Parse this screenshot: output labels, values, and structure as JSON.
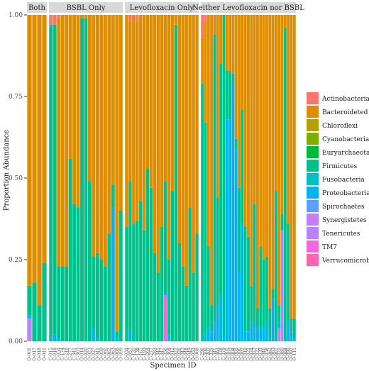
{
  "chart_data": {
    "type": "stacked-bar",
    "xlabel": "Specimen ID",
    "ylabel": "Proportion Abundance",
    "ylim": [
      0,
      1
    ],
    "yticks": [
      "0.00",
      "0.25",
      "0.50",
      "0.75",
      "1.00"
    ],
    "grid": false,
    "legend_position": "right",
    "stack_order": [
      "Verrucomicrobia",
      "TM7",
      "Tenericutes",
      "Synergistetes",
      "Spirochaetes",
      "Proteobacteria",
      "Fusobacteria",
      "Firmicutes",
      "Euryarchaeota",
      "Cyanobacteria",
      "Chloroflexi",
      "Bacteroideted",
      "Actinobacteria"
    ],
    "taxa": [
      {
        "name": "Actinobacteria",
        "color": "#F8766D"
      },
      {
        "name": "Bacteroideted",
        "color": "#DE8C00"
      },
      {
        "name": "Chloroflexi",
        "color": "#B79F00"
      },
      {
        "name": "Cyanobacteria",
        "color": "#7CAE00"
      },
      {
        "name": "Euryarchaeota",
        "color": "#00BA38"
      },
      {
        "name": "Firmicutes",
        "color": "#00C08B"
      },
      {
        "name": "Fusobacteria",
        "color": "#00BFC4"
      },
      {
        "name": "Proteobacteria",
        "color": "#00B4F0"
      },
      {
        "name": "Spirochaetes",
        "color": "#619CFF"
      },
      {
        "name": "Synergistetes",
        "color": "#C77CFF"
      },
      {
        "name": "Tenericutes",
        "color": "#B983FF"
      },
      {
        "name": "TM7",
        "color": "#F564E3"
      },
      {
        "name": "Verrucomicrobia",
        "color": "#FF64B0"
      }
    ],
    "panels": [
      {
        "label": "Both",
        "samples": [
          {
            "id": "O-001",
            "Firmicutes": 0.09,
            "Proteobacteria": 0.01,
            "Tenericutes": 0.07,
            "Bacteroideted": 0.83
          },
          {
            "id": "O-017",
            "Firmicutes": 0.18,
            "Bacteroideted": 0.82
          },
          {
            "id": "O-018",
            "Firmicutes": 0.11,
            "Bacteroideted": 0.89
          },
          {
            "id": "O-041",
            "Firmicutes": 0.24,
            "Bacteroideted": 0.76
          }
        ]
      },
      {
        "label": "BSBL Only",
        "samples": [
          {
            "id": "C-015",
            "Firmicutes": 0.96,
            "Proteobacteria": 0.01,
            "Actinobacteria": 0.03
          },
          {
            "id": "C-018",
            "Firmicutes": 0.95,
            "Proteobacteria": 0.02,
            "Actinobacteria": 0.03
          },
          {
            "id": "C-054",
            "Firmicutes": 0.22,
            "Proteobacteria": 0.01,
            "Bacteroideted": 0.76,
            "Actinobacteria": 0.01
          },
          {
            "id": "C-174",
            "Firmicutes": 0.23,
            "Bacteroideted": 0.77
          },
          {
            "id": "C-218",
            "Firmicutes": 0.23,
            "Bacteroideted": 0.77
          },
          {
            "id": "C-277",
            "Firmicutes": 0.56,
            "Bacteroideted": 0.44
          },
          {
            "id": "C-341",
            "Firmicutes": 0.42,
            "Bacteroideted": 0.58
          },
          {
            "id": "C-363",
            "Firmicutes": 0.41,
            "Bacteroideted": 0.59
          },
          {
            "id": "O-014",
            "Firmicutes": 0.99,
            "Bacteroideted": 0.01
          },
          {
            "id": "O-020",
            "Firmicutes": 0.99,
            "Bacteroideted": 0.01
          },
          {
            "id": "O-023",
            "Firmicutes": 0.49,
            "Bacteroideted": 0.51
          },
          {
            "id": "O-027",
            "Firmicutes": 0.22,
            "Proteobacteria": 0.04,
            "Bacteroideted": 0.74
          },
          {
            "id": "O-041",
            "Firmicutes": 0.26,
            "Proteobacteria": 0.01,
            "Bacteroideted": 0.73
          },
          {
            "id": "O-059",
            "Firmicutes": 0.25,
            "Bacteroideted": 0.75
          },
          {
            "id": "O-060",
            "Firmicutes": 0.23,
            "Bacteroideted": 0.77
          },
          {
            "id": "O-062",
            "Firmicutes": 0.33,
            "Bacteroideted": 0.67
          },
          {
            "id": "O-063",
            "Firmicutes": 0.07,
            "Proteobacteria": 0.41,
            "Bacteroideted": 0.52
          },
          {
            "id": "O-068",
            "Firmicutes": 0.02,
            "Proteobacteria": 0.01,
            "Bacteroideted": 0.97
          },
          {
            "id": "O-099",
            "Firmicutes": 0.4,
            "Bacteroideted": 0.6
          }
        ]
      },
      {
        "label": "Levofloxacin Only",
        "samples": [
          {
            "id": "C-034",
            "Firmicutes": 0.35,
            "Bacteroideted": 0.65
          },
          {
            "id": "C-057",
            "Firmicutes": 0.45,
            "Proteobacteria": 0.04,
            "Bacteroideted": 0.49,
            "Actinobacteria": 0.02
          },
          {
            "id": "C-120",
            "Firmicutes": 0.36,
            "Bacteroideted": 0.64
          },
          {
            "id": "C-138",
            "Firmicutes": 0.37,
            "Bacteroideted": 0.61,
            "Actinobacteria": 0.02
          },
          {
            "id": "C-167",
            "Firmicutes": 0.43,
            "Bacteroideted": 0.57
          },
          {
            "id": "C-193",
            "Firmicutes": 0.34,
            "Bacteroideted": 0.66
          },
          {
            "id": "C-264",
            "Firmicutes": 0.53,
            "Bacteroideted": 0.47
          },
          {
            "id": "C-277",
            "Firmicutes": 0.47,
            "Bacteroideted": 0.53
          },
          {
            "id": "C-283",
            "Firmicutes": 0.27,
            "Bacteroideted": 0.73
          },
          {
            "id": "C-345",
            "Firmicutes": 0.21,
            "Bacteroideted": 0.79
          },
          {
            "id": "C-347",
            "Firmicutes": 0.35,
            "Bacteroideted": 0.65
          },
          {
            "id": "C-356",
            "Firmicutes": 0.34,
            "Proteobacteria": 0.01,
            "Bacteroideted": 0.51,
            "TM7": 0.14
          },
          {
            "id": "C-368",
            "Firmicutes": 0.23,
            "Proteobacteria": 0.02,
            "Bacteroideted": 0.75
          },
          {
            "id": "O-012",
            "Firmicutes": 0.46,
            "Bacteroideted": 0.54
          },
          {
            "id": "O-022",
            "Firmicutes": 0.97,
            "Bacteroideted": 0.03
          },
          {
            "id": "O-026",
            "Firmicutes": 0.3,
            "Bacteroideted": 0.7
          },
          {
            "id": "O-043",
            "Firmicutes": 0.23,
            "Bacteroideted": 0.77
          },
          {
            "id": "O-048",
            "Firmicutes": 0.17,
            "Bacteroideted": 0.83
          },
          {
            "id": "O-049",
            "Firmicutes": 0.41,
            "Bacteroideted": 0.59
          },
          {
            "id": "O-053",
            "Firmicutes": 0.21,
            "Bacteroideted": 0.79
          },
          {
            "id": "O-068",
            "Firmicutes": 0.33,
            "Bacteroideted": 0.67
          }
        ]
      },
      {
        "label": "Neither Levofloxacin nor BSBL",
        "samples": [
          {
            "id": "C-296",
            "Firmicutes": 0.79,
            "Bacteroideted": 0.14,
            "Actinobacteria": 0.07
          },
          {
            "id": "C-300",
            "Firmicutes": 0.65,
            "Proteobacteria": 0.02,
            "Bacteroideted": 0.31,
            "Actinobacteria": 0.02
          },
          {
            "id": "C-307",
            "Firmicutes": 0.25,
            "Proteobacteria": 0.04,
            "Bacteroideted": 0.71
          },
          {
            "id": "C-329",
            "Firmicutes": 0.08,
            "Proteobacteria": 0.03,
            "Bacteroideted": 0.89
          },
          {
            "id": "C-341",
            "Firmicutes": 0.88,
            "Proteobacteria": 0.06,
            "Bacteroideted": 0.06
          },
          {
            "id": "C-363",
            "Firmicutes": 0.33,
            "Proteobacteria": 0.11,
            "Bacteroideted": 0.56
          },
          {
            "id": "C-378",
            "Firmicutes": 0.71,
            "Proteobacteria": 0.14,
            "Bacteroideted": 0.15
          },
          {
            "id": "C-379",
            "Firmicutes": 0.99,
            "Proteobacteria": 0.01
          },
          {
            "id": "O-001",
            "Firmicutes": 0.15,
            "Proteobacteria": 0.68,
            "Bacteroideted": 0.17
          },
          {
            "id": "O-003",
            "Firmicutes": 0.15,
            "Proteobacteria": 0.68,
            "Bacteroideted": 0.17
          },
          {
            "id": "O-004",
            "Firmicutes": 0.02,
            "Proteobacteria": 0.8,
            "Bacteroideted": 0.18
          },
          {
            "id": "O-005",
            "Firmicutes": 0.03,
            "Proteobacteria": 0.59,
            "Bacteroideted": 0.38
          },
          {
            "id": "O-006",
            "Firmicutes": 0.26,
            "Proteobacteria": 0.21,
            "Bacteroideted": 0.53
          },
          {
            "id": "O-007",
            "Firmicutes": 0.35,
            "Proteobacteria": 0.36,
            "Bacteroideted": 0.29
          },
          {
            "id": "O-019",
            "Firmicutes": 0.32,
            "Proteobacteria": 0.03,
            "Bacteroideted": 0.65
          },
          {
            "id": "O-021",
            "Firmicutes": 0.29,
            "Proteobacteria": 0.03,
            "Bacteroideted": 0.68
          },
          {
            "id": "O-024",
            "Firmicutes": 0.11,
            "Proteobacteria": 0.06,
            "Bacteroideted": 0.83
          },
          {
            "id": "O-027",
            "Firmicutes": 0.38,
            "Proteobacteria": 0.04,
            "Bacteroideted": 0.58
          },
          {
            "id": "O-032",
            "Firmicutes": 0.05,
            "Proteobacteria": 0.05,
            "Bacteroideted": 0.9
          },
          {
            "id": "O-033",
            "Firmicutes": 0.25,
            "Proteobacteria": 0.04,
            "Bacteroideted": 0.71
          },
          {
            "id": "O-046",
            "Firmicutes": 0.21,
            "Proteobacteria": 0.04,
            "Bacteroideted": 0.75
          },
          {
            "id": "O-058",
            "Firmicutes": 0.2,
            "Proteobacteria": 0.06,
            "Bacteroideted": 0.74
          },
          {
            "id": "O-062",
            "Firmicutes": 0.09,
            "Proteobacteria": 0.01,
            "Bacteroideted": 0.9
          },
          {
            "id": "O-063",
            "Firmicutes": 0.03,
            "Proteobacteria": 0.13,
            "Bacteroideted": 0.84
          },
          {
            "id": "O-067",
            "Firmicutes": 0.46,
            "Bacteroideted": 0.54
          },
          {
            "id": "O-071",
            "Firmicutes": 0.05,
            "Proteobacteria": 0.02,
            "Tenericutes": 0.04,
            "Bacteroideted": 0.89
          },
          {
            "id": "O-080",
            "Firmicutes": 0.05,
            "Tenericutes": 0.34,
            "Bacteroideted": 0.61
          },
          {
            "id": "O-084",
            "Firmicutes": 0.96,
            "Bacteroideted": 0.04
          },
          {
            "id": "O-090",
            "Firmicutes": 0.3,
            "Proteobacteria": 0.06,
            "Bacteroideted": 0.64
          },
          {
            "id": "O-097",
            "Firmicutes": 0.04,
            "Proteobacteria": 0.03,
            "Bacteroideted": 0.93
          },
          {
            "id": "O-111",
            "Firmicutes": 0.06,
            "Proteobacteria": 0.01,
            "Bacteroideted": 0.93
          }
        ]
      }
    ]
  }
}
